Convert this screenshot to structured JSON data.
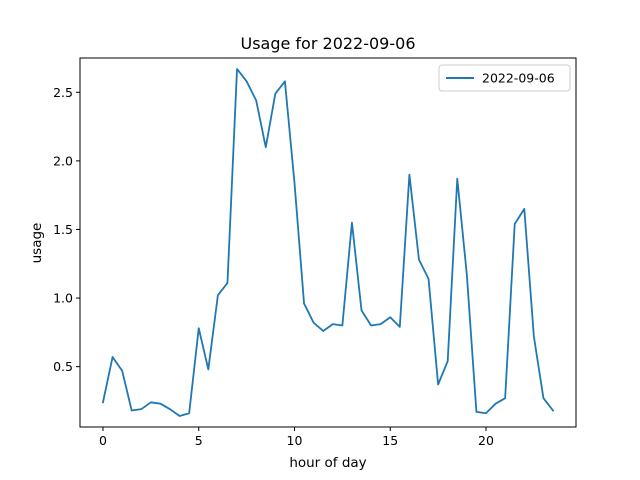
{
  "chart_data": {
    "type": "line",
    "title": "Usage for 2022-09-06",
    "xlabel": "hour of day",
    "ylabel": "usage",
    "xlim": [
      -1.2,
      24.7
    ],
    "ylim": [
      0.06,
      2.75
    ],
    "xticks": [
      0,
      5,
      10,
      15,
      20
    ],
    "yticks": [
      0.5,
      1.0,
      1.5,
      2.0,
      2.5
    ],
    "grid": false,
    "legend_position": "top-right",
    "series": [
      {
        "name": "2022-09-06",
        "color": "#1f77b4",
        "x": [
          0,
          0.5,
          1,
          1.5,
          2,
          2.5,
          3,
          3.5,
          4,
          4.5,
          5,
          5.5,
          6,
          6.5,
          7,
          7.5,
          8,
          8.5,
          9,
          9.5,
          10,
          10.5,
          11,
          11.5,
          12,
          12.5,
          13,
          13.5,
          14,
          14.5,
          15,
          15.5,
          16,
          16.5,
          17,
          17.5,
          18,
          18.5,
          19,
          19.5,
          20,
          20.5,
          21,
          21.5,
          22,
          22.5,
          23,
          23.5
        ],
        "y": [
          0.24,
          0.57,
          0.47,
          0.18,
          0.19,
          0.24,
          0.23,
          0.19,
          0.14,
          0.16,
          0.78,
          0.48,
          1.02,
          1.11,
          2.67,
          2.58,
          2.44,
          2.1,
          2.49,
          2.58,
          1.84,
          0.96,
          0.82,
          0.76,
          0.81,
          0.8,
          1.55,
          0.91,
          0.8,
          0.81,
          0.86,
          0.79,
          1.9,
          1.28,
          1.14,
          0.37,
          0.54,
          1.87,
          1.17,
          0.17,
          0.16,
          0.23,
          0.27,
          1.54,
          1.65,
          0.72,
          0.27,
          0.18
        ]
      }
    ]
  }
}
